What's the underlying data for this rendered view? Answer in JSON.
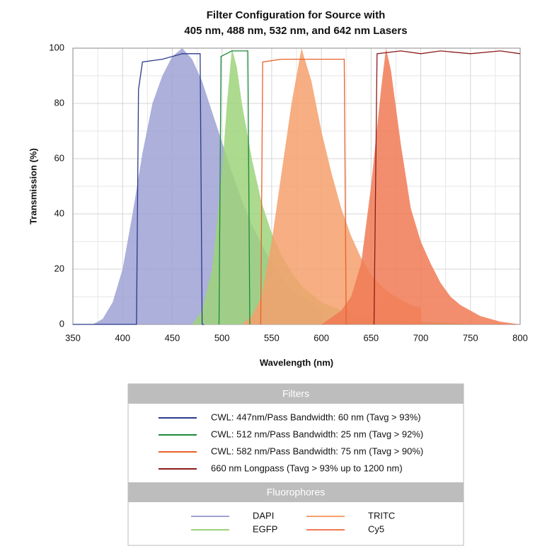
{
  "chart_data": {
    "type": "line",
    "title": [
      "Filter Configuration for Source with",
      "405 nm, 488 nm, 532 nm, and 642 nm Lasers"
    ],
    "x_label": "Wavelength (nm)",
    "y_label": "Transmission (%)",
    "xlim": [
      350,
      800
    ],
    "ylim": [
      0,
      100
    ],
    "xticks": [
      350,
      400,
      450,
      500,
      550,
      600,
      650,
      700,
      750,
      800
    ],
    "yticks": [
      0,
      20,
      40,
      60,
      80,
      100
    ],
    "xminor": [
      375,
      425,
      475,
      525,
      575,
      625,
      675,
      725,
      775
    ],
    "yminor": [
      10,
      30,
      50,
      70,
      90
    ],
    "grid": true,
    "legend_titles": [
      "Filters",
      "Fluorophores"
    ],
    "series": [
      {
        "name": "CWL: 447nm/Pass Bandwidth: 60 nm (Tavg > 93%)",
        "kind": "line",
        "color": "#2b3a8c",
        "x": [
          350,
          414,
          416,
          420,
          440,
          460,
          478,
          480,
          482
        ],
        "values": [
          0,
          0,
          85,
          95,
          96,
          98,
          98,
          0,
          0
        ]
      },
      {
        "name": "CWL: 512 nm/Pass Bandwidth: 25 nm (Tavg > 92%)",
        "kind": "line",
        "color": "#1a8a3a",
        "x": [
          497,
          499,
          510,
          526,
          528
        ],
        "values": [
          0,
          97,
          99,
          99,
          0
        ]
      },
      {
        "name": "CWL: 582 nm/Pass Bandwidth: 75 nm (Tavg > 90%)",
        "kind": "line",
        "color": "#e8622a",
        "x": [
          539,
          541,
          560,
          600,
          623,
          625
        ],
        "values": [
          0,
          95,
          96,
          96,
          96,
          0
        ]
      },
      {
        "name": "660 nm Longpass (Tavg > 93% up to 1200 nm)",
        "kind": "line",
        "color": "#8b1a1a",
        "x": [
          653,
          656,
          680,
          700,
          720,
          750,
          780,
          800
        ],
        "values": [
          0,
          98,
          99,
          98,
          99,
          98,
          99,
          98
        ]
      },
      {
        "name": "DAPI",
        "kind": "area",
        "color": "#9ea2d3",
        "x": [
          370,
          380,
          390,
          400,
          410,
          420,
          430,
          440,
          450,
          460,
          470,
          480,
          490,
          500,
          510,
          520,
          530,
          540,
          550,
          560,
          570,
          580,
          590,
          600,
          601
        ],
        "values": [
          0,
          2,
          8,
          20,
          40,
          62,
          80,
          90,
          97,
          100,
          96,
          88,
          77,
          66,
          55,
          45,
          36,
          29,
          22,
          17,
          13,
          10,
          8,
          6,
          0
        ]
      },
      {
        "name": "EGFP",
        "kind": "area",
        "color": "#9dd37a",
        "x": [
          470,
          480,
          490,
          500,
          505,
          510,
          515,
          520,
          530,
          540,
          550,
          560,
          570,
          580,
          590,
          600,
          620,
          650,
          700,
          760
        ],
        "values": [
          0,
          5,
          20,
          55,
          80,
          100,
          93,
          80,
          60,
          44,
          33,
          25,
          19,
          14,
          11,
          8,
          5,
          2,
          1,
          0
        ]
      },
      {
        "name": "TRITC",
        "kind": "area",
        "color": "#f4a06c",
        "x": [
          520,
          530,
          540,
          550,
          560,
          570,
          580,
          590,
          600,
          610,
          620,
          630,
          640,
          650,
          660,
          670,
          680,
          690,
          700,
          701
        ],
        "values": [
          0,
          3,
          10,
          30,
          55,
          80,
          100,
          88,
          70,
          55,
          42,
          32,
          24,
          18,
          14,
          11,
          9,
          7,
          6,
          0
        ]
      },
      {
        "name": "Cy5",
        "kind": "area",
        "color": "#f07a55",
        "x": [
          600,
          620,
          630,
          640,
          650,
          660,
          665,
          670,
          680,
          690,
          700,
          710,
          720,
          730,
          740,
          750,
          760,
          780,
          800
        ],
        "values": [
          0,
          5,
          10,
          22,
          50,
          85,
          100,
          92,
          65,
          42,
          30,
          22,
          15,
          10,
          7,
          5,
          3,
          1,
          0
        ]
      }
    ]
  }
}
